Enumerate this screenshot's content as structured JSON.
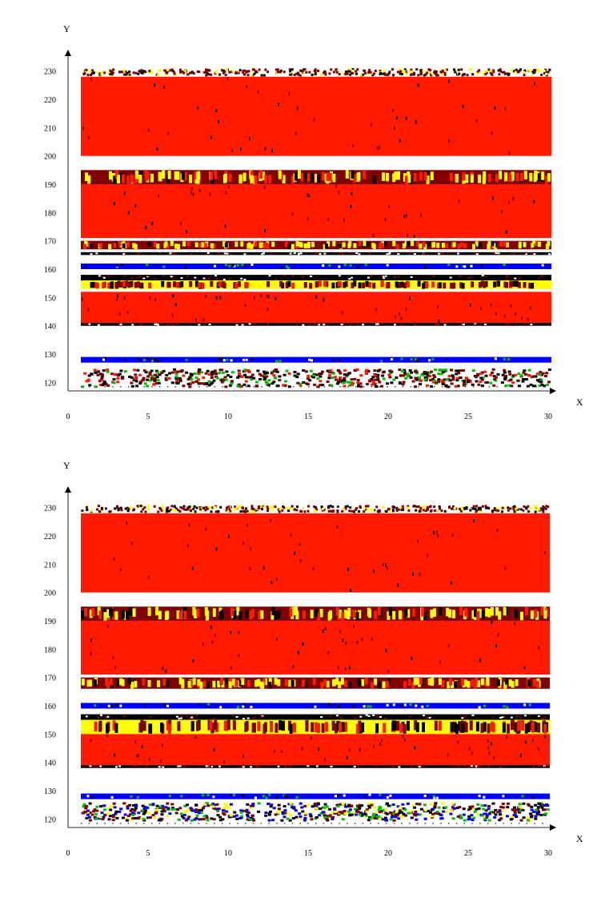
{
  "colors": {
    "helix": "#ff1a00",
    "turn": "#800000",
    "bend": "#ffff00",
    "isolated_bridge": "#000000",
    "strand": "#0000ff",
    "three_ten_helix": "#00c000"
  },
  "chart_data": [
    {
      "type": "heatmap",
      "xlabel": "X",
      "ylabel": "Y",
      "xlim": [
        0,
        30
      ],
      "ylim": [
        117,
        233
      ],
      "x_ticks": [
        "0",
        "5",
        "10",
        "15",
        "20",
        "25",
        "30"
      ],
      "y_ticks": [
        "120",
        "130",
        "140",
        "150",
        "160",
        "170",
        "180",
        "190",
        "200",
        "210",
        "220",
        "230"
      ],
      "grid": false,
      "legend": "none",
      "data_range_x": [
        0.8,
        30.2
      ],
      "bands": [
        {
          "y": [
            200,
            228
          ],
          "class": "helix"
        },
        {
          "y": [
            228,
            231
          ],
          "class": "turn-fringe"
        },
        {
          "y": [
            171,
            190
          ],
          "class": "helix"
        },
        {
          "y": [
            190,
            195
          ],
          "class": "turn-bend-mix"
        },
        {
          "y": [
            167,
            170
          ],
          "class": "turn-bend-mix"
        },
        {
          "y": [
            165,
            166
          ],
          "class": "bridge-line"
        },
        {
          "y": [
            160,
            162
          ],
          "class": "strand"
        },
        {
          "y": [
            156,
            158
          ],
          "class": "bridge-line"
        },
        {
          "y": [
            153,
            156
          ],
          "class": "bend-turn-mix"
        },
        {
          "y": [
            141,
            152
          ],
          "class": "helix"
        },
        {
          "y": [
            140,
            141
          ],
          "class": "bridge-line"
        },
        {
          "y": [
            127,
            129
          ],
          "class": "strand"
        },
        {
          "y": [
            118,
            125
          ],
          "class": "bridge-turn-mix"
        }
      ]
    },
    {
      "type": "heatmap",
      "xlabel": "X",
      "ylabel": "Y",
      "xlim": [
        0,
        30
      ],
      "ylim": [
        117,
        233
      ],
      "x_ticks": [
        "0",
        "5",
        "10",
        "15",
        "20",
        "25",
        "30"
      ],
      "y_ticks": [
        "120",
        "130",
        "140",
        "150",
        "160",
        "170",
        "180",
        "190",
        "200",
        "210",
        "220",
        "230"
      ],
      "grid": false,
      "legend": "none",
      "data_range_x": [
        0.8,
        30.1
      ],
      "bands": [
        {
          "y": [
            200,
            228
          ],
          "class": "helix"
        },
        {
          "y": [
            228,
            231
          ],
          "class": "turn-fringe"
        },
        {
          "y": [
            171,
            190
          ],
          "class": "helix"
        },
        {
          "y": [
            190,
            195
          ],
          "class": "turn-bend-mix"
        },
        {
          "y": [
            166,
            170
          ],
          "class": "turn-bend-mix"
        },
        {
          "y": [
            159,
            161
          ],
          "class": "strand"
        },
        {
          "y": [
            155,
            157
          ],
          "class": "bridge-line"
        },
        {
          "y": [
            150,
            155
          ],
          "class": "bend-turn-mix"
        },
        {
          "y": [
            139,
            150
          ],
          "class": "helix"
        },
        {
          "y": [
            138,
            139
          ],
          "class": "bridge-line"
        },
        {
          "y": [
            127,
            129
          ],
          "class": "strand"
        },
        {
          "y": [
            119,
            126
          ],
          "class": "strand-turn-mix"
        }
      ]
    }
  ]
}
